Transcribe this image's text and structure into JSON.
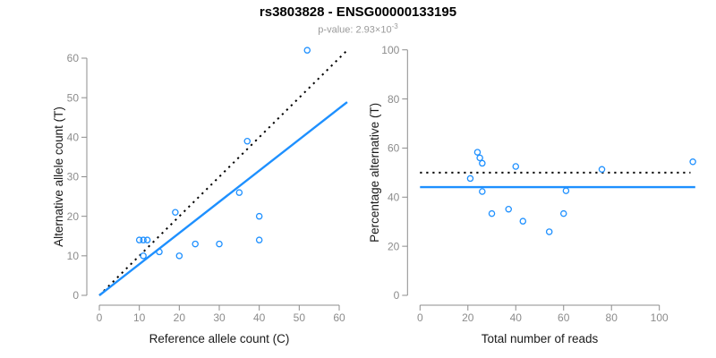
{
  "title": "rs3803828 - ENSG00000133195",
  "subtitle": {
    "prefix": "p-value: ",
    "mantissa": "2.93×10",
    "exponent": "-3"
  },
  "colors": {
    "accent_blue": "#1E90FF",
    "dotted_black": "#000000",
    "axis_gray": "#8c8c8c",
    "tick_label_gray": "#8c8c8c",
    "axis_title_color": "#1a1a1a",
    "subtitle_gray": "#9a9a9a",
    "background": "#ffffff"
  },
  "chart_data": [
    {
      "type": "scatter",
      "name": "allele-counts-plot",
      "xlabel": "Reference allele count (C)",
      "ylabel": "Alternative allele count (T)",
      "xlim": [
        0,
        62
      ],
      "ylim": [
        0,
        62
      ],
      "xticks": [
        0,
        10,
        20,
        30,
        40,
        50,
        60
      ],
      "yticks": [
        0,
        10,
        20,
        30,
        40,
        50,
        60
      ],
      "grid": false,
      "legend": null,
      "points": [
        [
          10,
          14
        ],
        [
          11,
          14
        ],
        [
          12,
          14
        ],
        [
          11,
          10
        ],
        [
          15,
          11
        ],
        [
          19,
          21
        ],
        [
          20,
          10
        ],
        [
          24,
          13
        ],
        [
          30,
          13
        ],
        [
          35,
          26
        ],
        [
          37,
          39
        ],
        [
          40,
          20
        ],
        [
          40,
          14
        ],
        [
          52,
          62
        ]
      ],
      "lines": [
        {
          "name": "identity-line",
          "style": "dotted",
          "color": "#000000",
          "from": [
            0,
            0
          ],
          "to": [
            62,
            62
          ],
          "meaning": "expected 1:1 ratio"
        },
        {
          "name": "fit-line",
          "style": "solid",
          "color": "#1E90FF",
          "from": [
            0,
            0
          ],
          "to": [
            62,
            48.9
          ],
          "slope": 0.789,
          "meaning": "observed alt/ref ratio"
        }
      ]
    },
    {
      "type": "scatter",
      "name": "percentage-plot",
      "xlabel": "Total number of reads",
      "ylabel": "Percentage alternative (T)",
      "xlim": [
        0,
        115
      ],
      "ylim": [
        0,
        100
      ],
      "xticks": [
        0,
        20,
        40,
        60,
        80,
        100
      ],
      "yticks": [
        0,
        20,
        40,
        60,
        80,
        100
      ],
      "grid": false,
      "legend": null,
      "points": [
        [
          21,
          47.6
        ],
        [
          24,
          58.3
        ],
        [
          25,
          56.0
        ],
        [
          26,
          53.8
        ],
        [
          26,
          42.3
        ],
        [
          30,
          33.3
        ],
        [
          37,
          35.1
        ],
        [
          40,
          52.5
        ],
        [
          43,
          30.2
        ],
        [
          54,
          25.9
        ],
        [
          60,
          33.3
        ],
        [
          61,
          42.6
        ],
        [
          76,
          51.3
        ],
        [
          114,
          54.4
        ]
      ],
      "lines": [
        {
          "name": "expected-percentage-line",
          "style": "dotted",
          "color": "#000000",
          "from": [
            0,
            50
          ],
          "to": [
            113,
            50
          ],
          "y": 50,
          "meaning": "expected 50%"
        },
        {
          "name": "observed-percentage-line",
          "style": "solid",
          "color": "#1E90FF",
          "from": [
            0,
            44.1
          ],
          "to": [
            115,
            44.1
          ],
          "y": 44.1,
          "meaning": "observed mean %"
        }
      ]
    }
  ]
}
